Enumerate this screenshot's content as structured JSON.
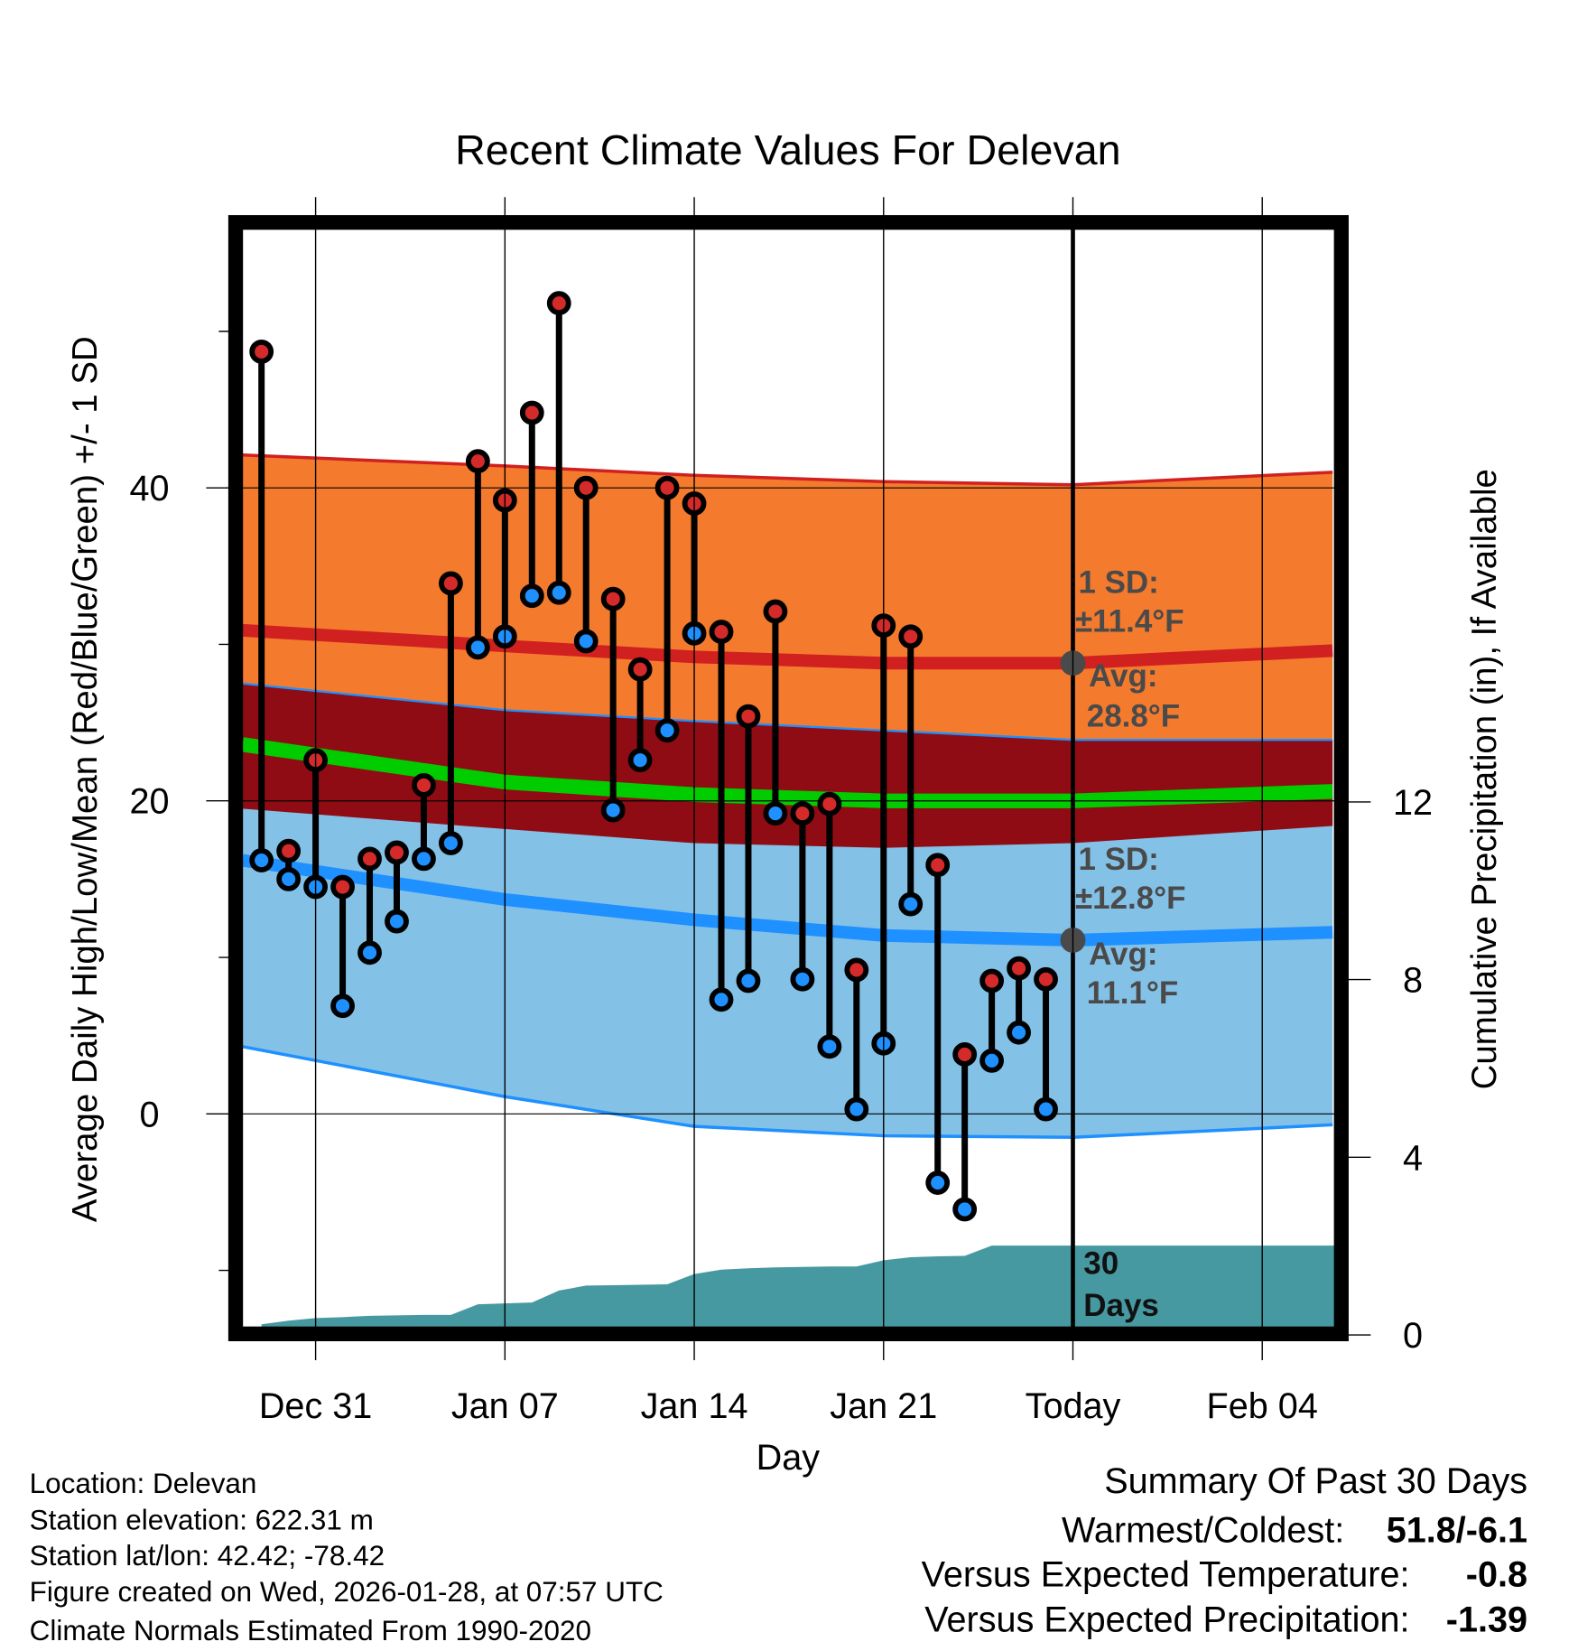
{
  "chart_data": {
    "type": "line",
    "title": "Recent Climate Values For Delevan",
    "xlabel": "Day",
    "ylabel": "Average Daily High/Low/Mean (Red/Blue/Green) +/- 1 SD",
    "y2label": "Cumulative Precipitation (in), If Available",
    "ylim": [
      -14,
      57
    ],
    "y2lim": [
      0,
      17
    ],
    "yticks": [
      "0",
      "20",
      "40"
    ],
    "y2ticks": [
      "0",
      "4",
      "8",
      "12"
    ],
    "xticks": [
      {
        "day": 0,
        "label": "Dec 31"
      },
      {
        "day": 7,
        "label": "Jan 07"
      },
      {
        "day": 14,
        "label": "Jan 14"
      },
      {
        "day": 21,
        "label": "Jan 21"
      },
      {
        "day": 28,
        "label": "Today"
      },
      {
        "day": 35,
        "label": "Feb 04"
      }
    ],
    "x_units": "days since Dec 31",
    "observations": {
      "days": [
        -2,
        -1,
        0,
        1,
        2,
        3,
        4,
        5,
        6,
        7,
        8,
        9,
        10,
        11,
        12,
        13,
        14,
        15,
        16,
        17,
        18,
        19,
        20,
        21,
        22,
        23,
        24,
        25,
        26,
        27
      ],
      "high": [
        48.7,
        16.8,
        22.6,
        14.5,
        16.3,
        16.7,
        21.0,
        33.9,
        41.7,
        39.2,
        44.8,
        51.8,
        40.0,
        32.9,
        28.4,
        40.0,
        39.0,
        30.8,
        25.4,
        32.1,
        19.2,
        19.8,
        9.2,
        31.2,
        30.5,
        15.9,
        3.8,
        8.5,
        9.3,
        8.6
      ],
      "low": [
        16.2,
        15.0,
        14.5,
        6.9,
        10.3,
        12.3,
        16.3,
        17.3,
        29.8,
        30.5,
        33.1,
        33.3,
        30.2,
        19.4,
        22.6,
        24.5,
        30.7,
        7.3,
        8.5,
        19.2,
        8.6,
        4.3,
        0.3,
        4.5,
        13.4,
        -4.4,
        -6.1,
        3.4,
        5.2,
        0.3
      ],
      "cumulative_precip": [
        0.24,
        0.32,
        0.38,
        0.4,
        0.43,
        0.44,
        0.45,
        0.45,
        0.69,
        0.71,
        0.73,
        1.0,
        1.11,
        1.12,
        1.13,
        1.14,
        1.37,
        1.47,
        1.5,
        1.52,
        1.53,
        1.54,
        1.54,
        1.68,
        1.75,
        1.77,
        1.78,
        2.01,
        2.01,
        2.01
      ]
    },
    "normals": {
      "days": [
        -2.7,
        7,
        14,
        21,
        28,
        37.6
      ],
      "high_avg": [
        30.9,
        29.9,
        29.2,
        28.8,
        28.8,
        29.6
      ],
      "high_upper": [
        42.1,
        41.4,
        40.8,
        40.4,
        40.2,
        41.0
      ],
      "high_lower": [
        19.5,
        18.2,
        17.3,
        17.0,
        17.3,
        18.4
      ],
      "low_avg": [
        16.2,
        13.7,
        12.4,
        11.4,
        11.1,
        11.6
      ],
      "low_upper": [
        27.5,
        25.8,
        25.1,
        24.5,
        23.9,
        23.9
      ],
      "low_lower": [
        4.3,
        1.1,
        -0.8,
        -1.4,
        -1.5,
        -0.7
      ],
      "mean": [
        23.6,
        21.2,
        20.4,
        20.0,
        20.0,
        20.6
      ]
    },
    "annotations": {
      "high_sd_label": "1 SD:",
      "high_sd_value": "±11.4°F",
      "high_avg_label": "Avg:",
      "high_avg_value": "28.8°F",
      "low_sd_label": "1 SD:",
      "low_sd_value": "±12.8°F",
      "low_avg_label": "Avg:",
      "low_avg_value": "11.1°F",
      "precip_label_1": "30",
      "precip_label_2": "Days"
    },
    "colors": {
      "high_band": "#f47a2e",
      "overlap_band": "#900c14",
      "low_band": "#83c1e6",
      "high_line": "#d02020",
      "low_line": "#1e90ff",
      "mean_line": "#00cc00",
      "precip": "#4799a1",
      "annotation": "#4a4a4a"
    }
  },
  "footer": {
    "location": "Location: Delevan",
    "elevation": "Station elevation: 622.31 m",
    "latlon": "Station lat/lon: 42.42; -78.42",
    "created": "Figure created on Wed, 2026-01-28, at 07:57 UTC",
    "normals": "Climate Normals Estimated From 1990-2020"
  },
  "summary": {
    "title": "Summary Of Past 30 Days",
    "warm_cold_label": "Warmest/Coldest:",
    "warm_cold_value": "51.8/-6.1",
    "temp_label": "Versus Expected Temperature:",
    "temp_value": "-0.8",
    "temp_color": "#1e90ff",
    "precip_label": "Versus Expected Precipitation:",
    "precip_value": "-1.39",
    "precip_color": "#a0522d"
  }
}
